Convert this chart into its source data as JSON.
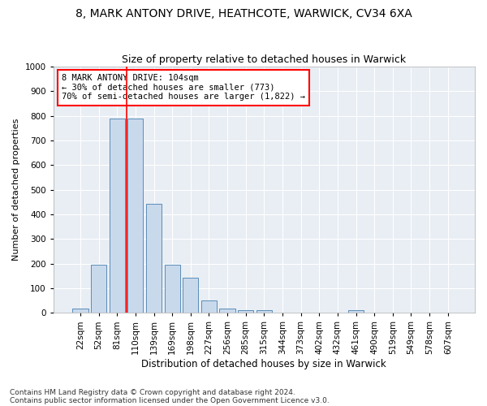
{
  "title1": "8, MARK ANTONY DRIVE, HEATHCOTE, WARWICK, CV34 6XA",
  "title2": "Size of property relative to detached houses in Warwick",
  "xlabel": "Distribution of detached houses by size in Warwick",
  "ylabel": "Number of detached properties",
  "categories": [
    "22sqm",
    "52sqm",
    "81sqm",
    "110sqm",
    "139sqm",
    "169sqm",
    "198sqm",
    "227sqm",
    "256sqm",
    "285sqm",
    "315sqm",
    "344sqm",
    "373sqm",
    "402sqm",
    "432sqm",
    "461sqm",
    "490sqm",
    "519sqm",
    "549sqm",
    "578sqm",
    "607sqm"
  ],
  "values": [
    18,
    197,
    790,
    790,
    442,
    197,
    142,
    50,
    18,
    12,
    10,
    0,
    0,
    0,
    0,
    12,
    0,
    0,
    0,
    0,
    0
  ],
  "bar_color": "#c9d9ec",
  "bar_edge_color": "#5b8db8",
  "vline_color": "red",
  "vline_x": 2.5,
  "annotation_text": "8 MARK ANTONY DRIVE: 104sqm\n← 30% of detached houses are smaller (773)\n70% of semi-detached houses are larger (1,822) →",
  "annotation_box_color": "white",
  "annotation_box_edge": "red",
  "ylim": [
    0,
    1000
  ],
  "yticks": [
    0,
    100,
    200,
    300,
    400,
    500,
    600,
    700,
    800,
    900,
    1000
  ],
  "background_color": "#e8eef4",
  "footnote1": "Contains HM Land Registry data © Crown copyright and database right 2024.",
  "footnote2": "Contains public sector information licensed under the Open Government Licence v3.0.",
  "title1_fontsize": 10,
  "title2_fontsize": 9,
  "xlabel_fontsize": 8.5,
  "ylabel_fontsize": 8,
  "tick_fontsize": 7.5,
  "annotation_fontsize": 7.5,
  "footnote_fontsize": 6.5
}
